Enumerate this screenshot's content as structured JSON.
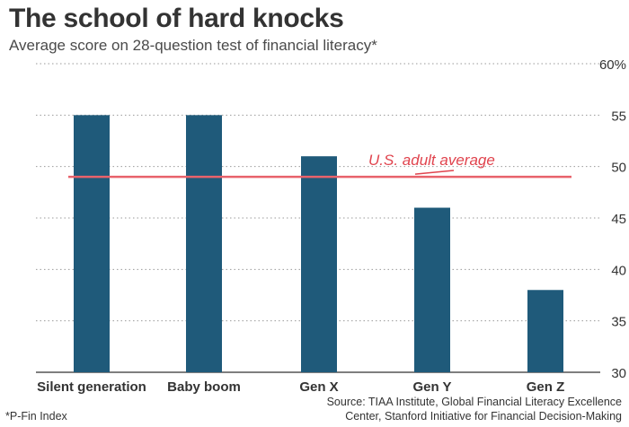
{
  "title": "The school of hard knocks",
  "subtitle": "Average score on 28-question test of financial literacy*",
  "footnote": "*P-Fin Index",
  "source_line1": "Source: TIAA Institute, Global Financial Literacy Excellence",
  "source_line2": "Center, Stanford Initiative for Financial Decision-Making",
  "colors": {
    "bar": "#1f5a7a",
    "reference_line": "#e8626b",
    "annotation": "#e0444e",
    "grid": "#9a9a9a"
  },
  "chart_data": {
    "type": "bar",
    "title": "The school of hard knocks",
    "subtitle": "Average score on 28-question test of financial literacy*",
    "categories": [
      "Silent generation",
      "Baby boom",
      "Gen X",
      "Gen Y",
      "Gen Z"
    ],
    "values": [
      55,
      55,
      51,
      46,
      38
    ],
    "ylim": [
      30,
      60
    ],
    "y_ticks": [
      30,
      35,
      40,
      45,
      50,
      55,
      60
    ],
    "y_tick_labels": [
      "30",
      "35",
      "40",
      "45",
      "50",
      "55",
      "60%"
    ],
    "y_axis_position": "right",
    "grid": true,
    "reference_line": {
      "label": "U.S. adult average",
      "value": 49
    }
  }
}
